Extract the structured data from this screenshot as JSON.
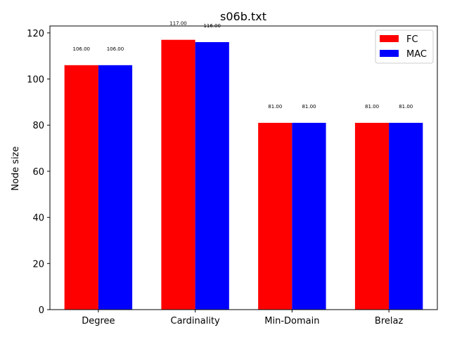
{
  "chart_data": {
    "type": "bar",
    "title": "s06b.txt",
    "xlabel": "",
    "ylabel": "Node size",
    "categories": [
      "Degree",
      "Cardinality",
      "Min-Domain",
      "Brelaz"
    ],
    "series": [
      {
        "name": "FC",
        "color": "#ff0000",
        "values": [
          106,
          117,
          81,
          81
        ],
        "labels": [
          "106.00",
          "117.00",
          "81.00",
          "81.00"
        ]
      },
      {
        "name": "MAC",
        "color": "#0000ff",
        "values": [
          106,
          116,
          81,
          81
        ],
        "labels": [
          "106.00",
          "116.00",
          "81.00",
          "81.00"
        ]
      }
    ],
    "ylim": [
      0,
      123
    ],
    "yticks": [
      0,
      20,
      40,
      60,
      80,
      100,
      120
    ],
    "grid": false,
    "legend_position": "top-right"
  }
}
